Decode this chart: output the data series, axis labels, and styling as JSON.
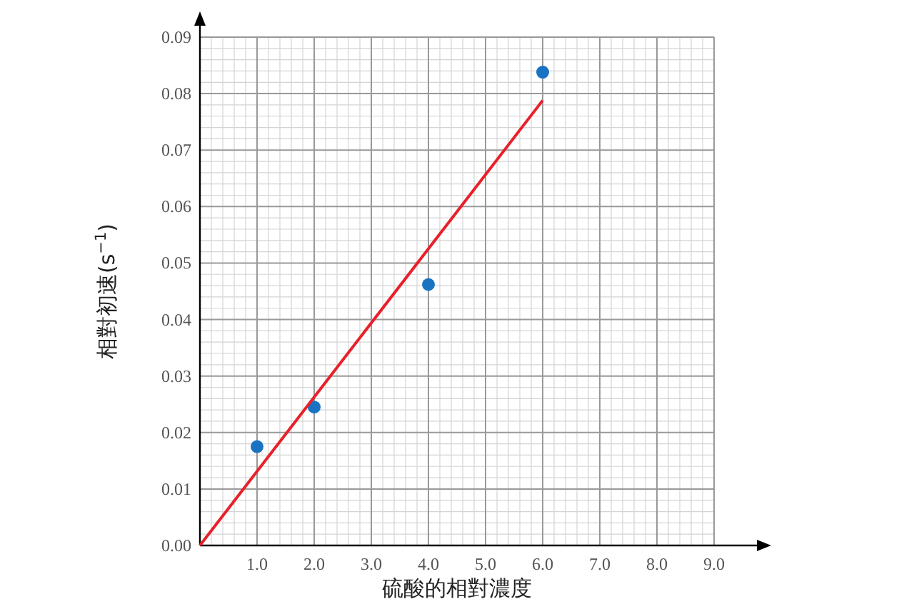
{
  "chart_data": {
    "type": "scatter",
    "xlabel": "硫酸的相對濃度",
    "ylabel": "相對初速(s$^{−1}$)",
    "xlim": [
      0,
      9
    ],
    "ylim": [
      0,
      0.09
    ],
    "xticks": [
      {
        "value": 0,
        "label": null
      },
      {
        "value": 1,
        "label": "1.0"
      },
      {
        "value": 2,
        "label": "2.0"
      },
      {
        "value": 3,
        "label": "3.0"
      },
      {
        "value": 4,
        "label": "4.0"
      },
      {
        "value": 5,
        "label": "5.0"
      },
      {
        "value": 6,
        "label": "6.0"
      },
      {
        "value": 7,
        "label": "7.0"
      },
      {
        "value": 8,
        "label": "8.0"
      },
      {
        "value": 9,
        "label": "9.0"
      }
    ],
    "yticks": [
      {
        "value": 0,
        "label": "0.00"
      },
      0.01,
      0.02,
      0.03,
      0.04,
      0.05,
      0.06,
      0.07,
      0.08,
      0.09
    ],
    "grid": true,
    "series": [
      {
        "type": "scatter",
        "color": "#1a73c2",
        "x": [
          1,
          2,
          4,
          6
        ],
        "values": [
          0.0175,
          0.0245,
          0.0462,
          0.0838
        ],
        "marker": "circle"
      },
      {
        "type": "line",
        "color": "#e8202a",
        "x": [
          0,
          6
        ],
        "values": [
          0,
          0.0788
        ],
        "marker": "none",
        "line_style": "solid"
      }
    ]
  }
}
